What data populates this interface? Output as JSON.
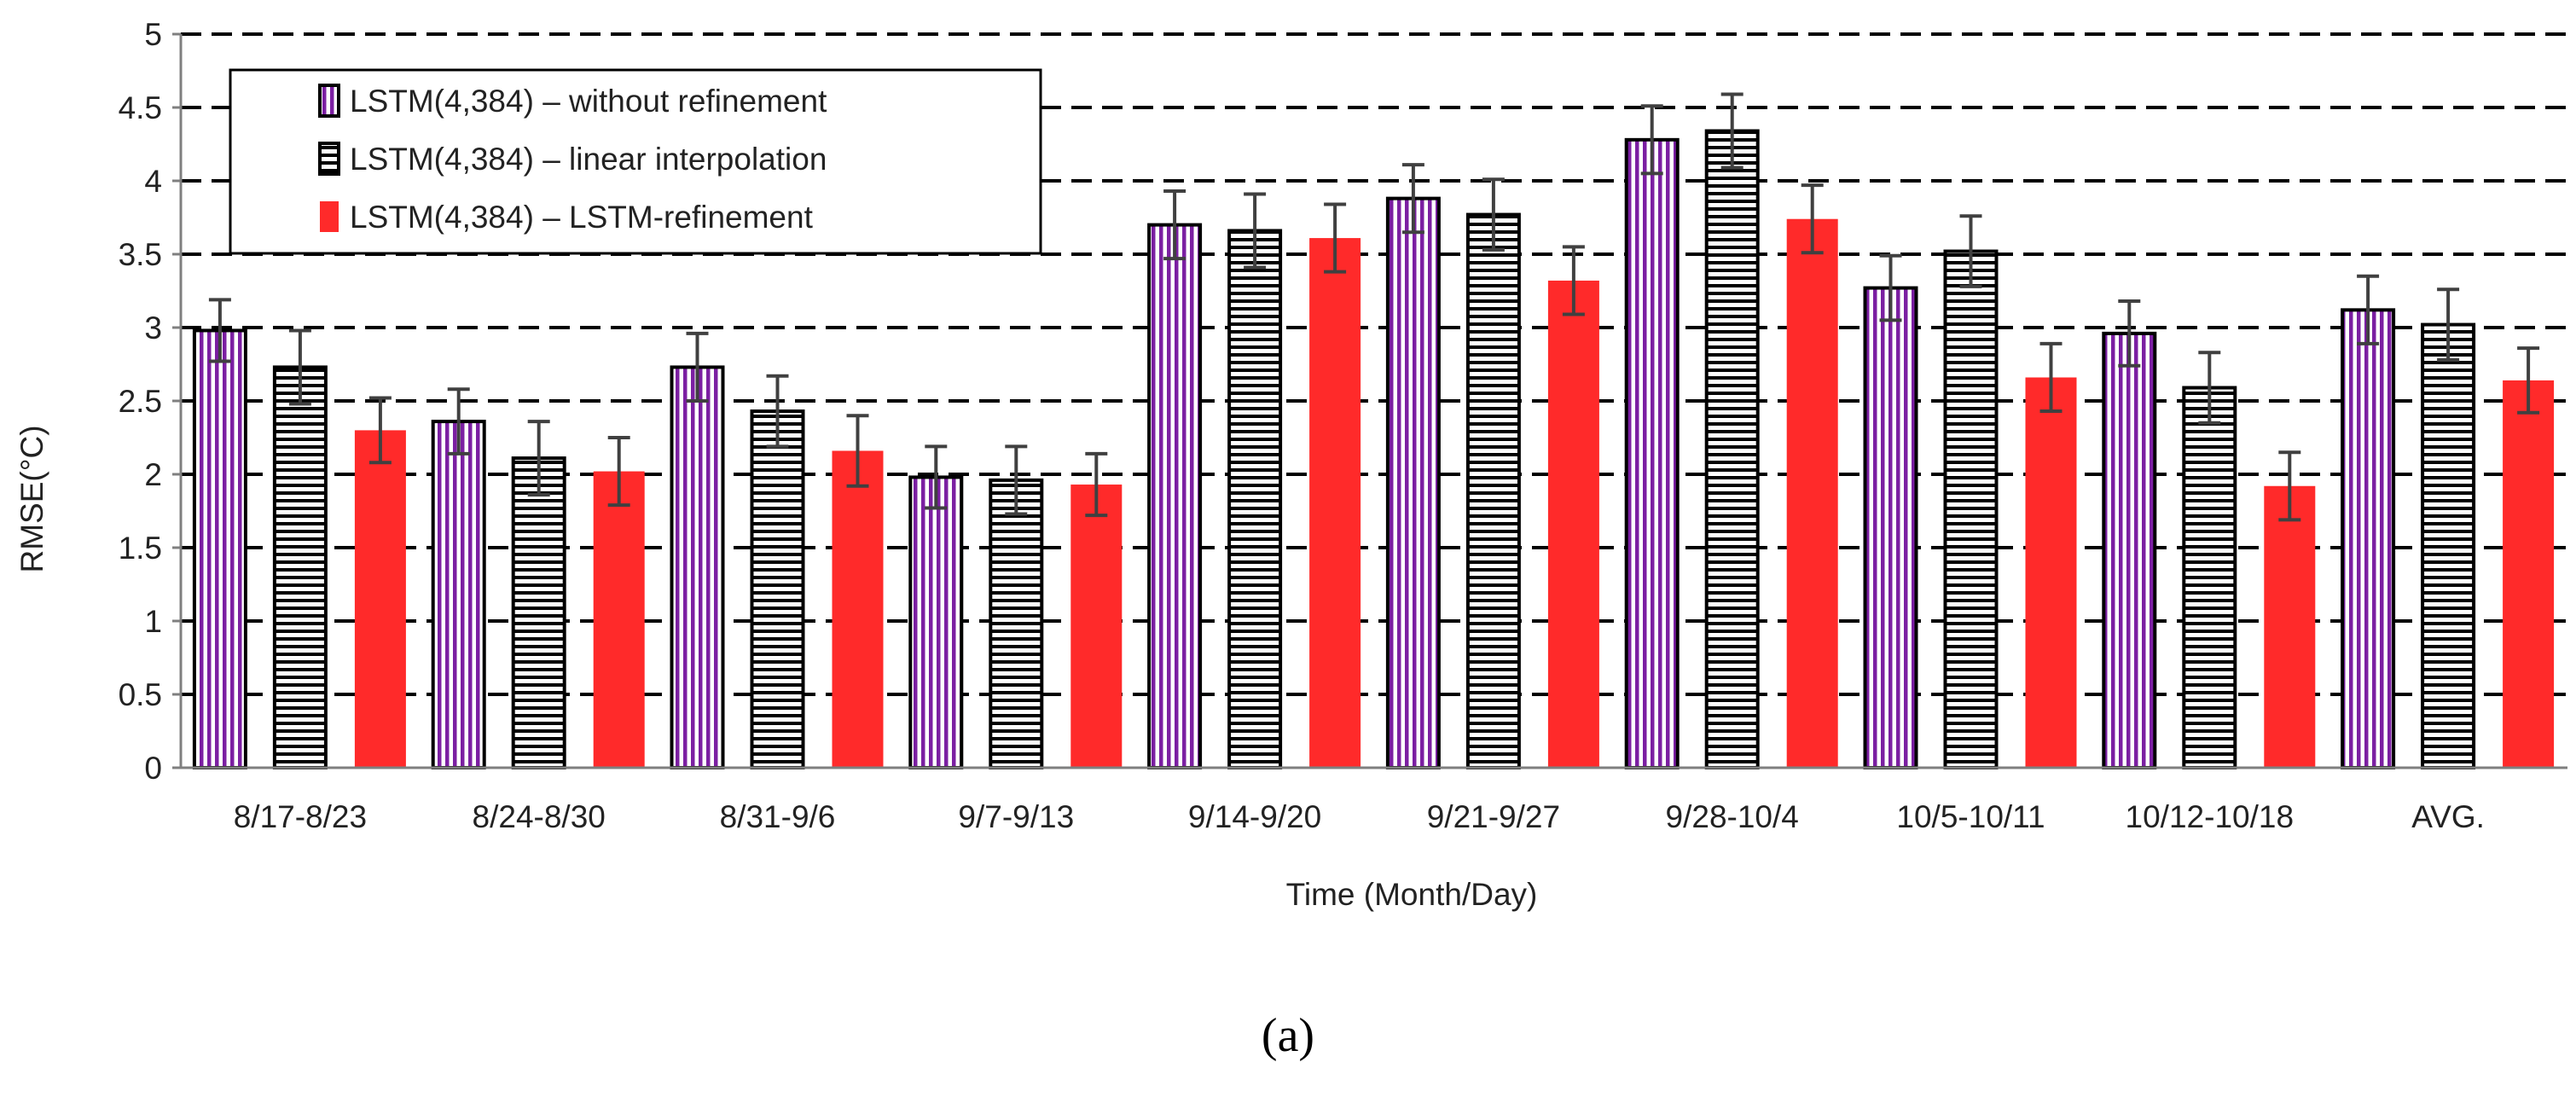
{
  "chart_data": {
    "type": "bar",
    "title": "",
    "xlabel": "Time (Month/Day)",
    "ylabel": "RMSE(°C)",
    "ylim": [
      0,
      5
    ],
    "yticks": [
      "0",
      "0.5",
      "1",
      "1.5",
      "2",
      "2.5",
      "3",
      "3.5",
      "4",
      "4.5",
      "5"
    ],
    "grid": "horizontal dashed",
    "legend_position": "top-left",
    "categories": [
      "8/17-8/23",
      "8/24-8/30",
      "8/31-9/6",
      "9/7-9/13",
      "9/14-9/20",
      "9/21-9/27",
      "9/28-10/4",
      "10/5-10/11",
      "10/12-10/18",
      "AVG."
    ],
    "series": [
      {
        "name": "LSTM(4,384) – without refinement",
        "pattern": "vertical-stripes",
        "color": "#7B1FA2",
        "values": [
          2.98,
          2.36,
          2.73,
          1.98,
          3.7,
          3.88,
          4.28,
          3.27,
          2.96,
          3.12
        ],
        "errors": [
          0.21,
          0.22,
          0.23,
          0.21,
          0.23,
          0.23,
          0.23,
          0.22,
          0.22,
          0.23
        ]
      },
      {
        "name": "LSTM(4,384) – linear interpolation",
        "pattern": "horizontal-stripes",
        "color": "#000000",
        "values": [
          2.73,
          2.11,
          2.43,
          1.96,
          3.66,
          3.77,
          4.34,
          3.52,
          2.59,
          3.02
        ],
        "errors": [
          0.25,
          0.25,
          0.24,
          0.23,
          0.25,
          0.24,
          0.25,
          0.24,
          0.24,
          0.24
        ]
      },
      {
        "name": "LSTM(4,384) – LSTM-refinement",
        "pattern": "solid",
        "color": "#FF2A2A",
        "values": [
          2.3,
          2.02,
          2.16,
          1.93,
          3.61,
          3.32,
          3.74,
          2.66,
          1.92,
          2.64
        ],
        "errors": [
          0.22,
          0.23,
          0.24,
          0.21,
          0.23,
          0.23,
          0.23,
          0.23,
          0.23,
          0.22
        ]
      }
    ]
  },
  "caption": "(a)",
  "colors": {
    "grid": "#000000",
    "errorbar": "#404040",
    "axis": "#7f7f7f"
  }
}
